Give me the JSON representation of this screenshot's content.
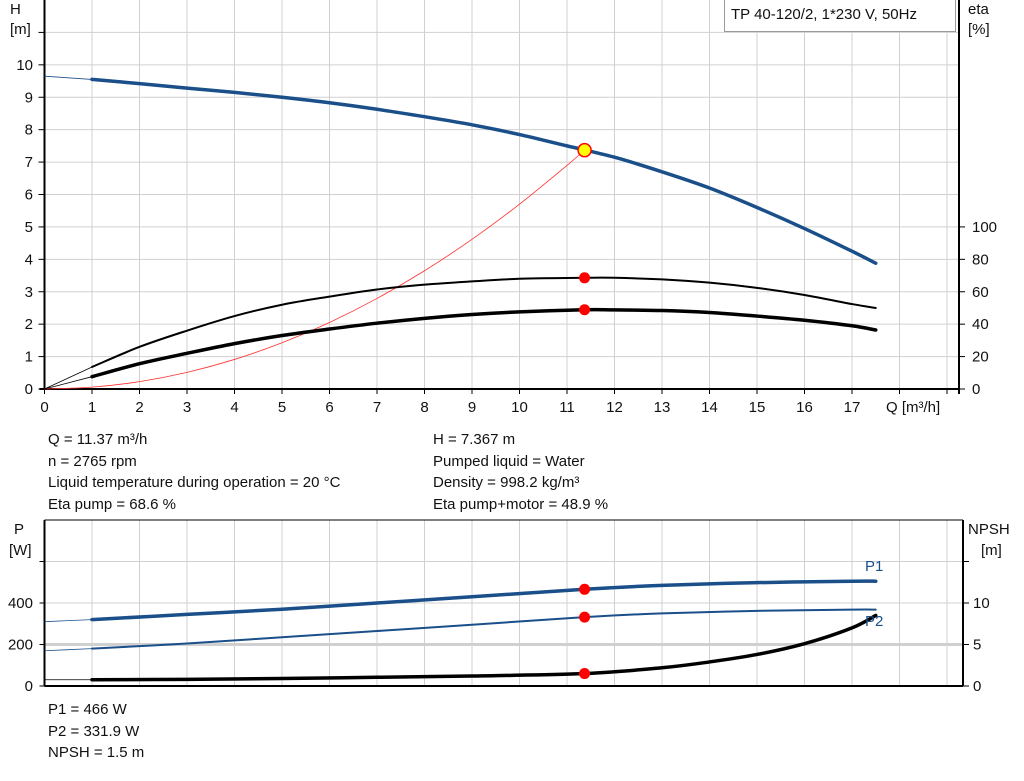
{
  "title": "TP 40-120/2, 1*230 V, 50Hz",
  "colors": {
    "head": "#1b4f8a",
    "power": "#1b4f8a",
    "efficiency": "#000000",
    "npsh": "#000000",
    "system_curve": "#ff3030",
    "duty_point": "#ff0000",
    "duty_point_head_fill": "#ffff00",
    "grid": "#d0d0d0"
  },
  "duty_info": {
    "left": [
      "Q = 11.37 m³/h",
      "n = 2765 rpm",
      "Liquid temperature during operation = 20 °C",
      "Eta pump = 68.6 %"
    ],
    "right": [
      "H = 7.367 m",
      "Pumped liquid = Water",
      "Density = 998.2 kg/m³",
      "Eta pump+motor = 48.9 %"
    ]
  },
  "power_info": [
    "P1 = 466 W",
    "P2 = 331.9 W",
    "NPSH = 1.5 m"
  ],
  "chart_data": [
    {
      "type": "line",
      "ylabel": "H",
      "yunit": "[m]",
      "y2label": "eta",
      "y2unit": "[%]",
      "xlabel": "Q [m³/h]",
      "xlim": [
        0,
        19
      ],
      "ylim": [
        0,
        12
      ],
      "y2lim": [
        0,
        240
      ],
      "xticks": [
        0,
        1,
        2,
        3,
        4,
        5,
        6,
        7,
        8,
        9,
        10,
        11,
        12,
        13,
        14,
        15,
        16,
        17
      ],
      "yticks": [
        0,
        1,
        2,
        3,
        4,
        5,
        6,
        7,
        8,
        9,
        10
      ],
      "y2ticks": [
        0,
        20,
        40,
        60,
        80,
        100
      ],
      "grid": true,
      "duty_point": {
        "Q": 11.37,
        "H": 7.367,
        "eta_pump": 68.6,
        "eta_pump_motor": 48.9
      },
      "series": [
        {
          "key": "H",
          "axis": "left",
          "x": [
            1,
            2,
            3,
            4,
            5,
            6,
            7,
            8,
            9,
            10,
            11,
            12,
            13,
            14,
            15,
            16,
            17,
            17.5
          ],
          "y": [
            9.55,
            9.42,
            9.28,
            9.15,
            9.0,
            8.83,
            8.63,
            8.4,
            8.15,
            7.85,
            7.5,
            7.15,
            6.7,
            6.2,
            5.6,
            4.95,
            4.25,
            3.88
          ],
          "extension": {
            "x": [
              0,
              1
            ],
            "y": [
              9.65,
              9.55
            ]
          }
        },
        {
          "key": "eta_pump",
          "axis": "right",
          "x": [
            1,
            2,
            3,
            4,
            5,
            6,
            7,
            8,
            9,
            10,
            11.37,
            12,
            13,
            14,
            15,
            16,
            17,
            17.5
          ],
          "y": [
            13.6,
            26,
            36,
            45,
            52,
            57,
            61.4,
            64.4,
            66.4,
            68,
            68.6,
            68.6,
            67.6,
            65.6,
            62.4,
            58,
            52.4,
            50
          ],
          "extension": {
            "x": [
              0,
              1
            ],
            "y": [
              0,
              13.6
            ]
          }
        },
        {
          "key": "eta_pump_motor",
          "axis": "right",
          "x": [
            1,
            2,
            3,
            4,
            5,
            6,
            7,
            8,
            9,
            10,
            11.37,
            12,
            13,
            14,
            15,
            16,
            17,
            17.5
          ],
          "y": [
            7.6,
            15.6,
            22,
            28,
            33,
            37,
            40.6,
            43.6,
            46,
            47.6,
            48.9,
            48.8,
            48.4,
            47.2,
            45,
            42.4,
            39,
            36.4
          ],
          "extension": {
            "x": [
              0,
              1
            ],
            "y": [
              0,
              7.6
            ]
          }
        },
        {
          "key": "system_curve",
          "axis": "left",
          "x": [
            0,
            1,
            2,
            3,
            4,
            5,
            6,
            7,
            8,
            9,
            10,
            11,
            11.37
          ],
          "y": [
            0,
            0.057,
            0.228,
            0.513,
            0.912,
            1.425,
            2.052,
            2.793,
            3.648,
            4.617,
            5.7,
            6.897,
            7.367
          ]
        }
      ]
    },
    {
      "type": "line",
      "ylabel": "P",
      "yunit": "[W]",
      "y2label": "NPSH",
      "y2unit": "[m]",
      "xlim": [
        0,
        19
      ],
      "ylim": [
        0,
        800
      ],
      "y2lim": [
        0,
        20
      ],
      "yticks": [
        0,
        200,
        400
      ],
      "y2ticks": [
        0,
        5,
        10
      ],
      "grid": true,
      "duty_point": {
        "Q": 11.37,
        "P1": 466,
        "P2": 331.9,
        "NPSH": 1.5
      },
      "series": [
        {
          "key": "P1",
          "name": "P1",
          "axis": "left",
          "x": [
            1,
            3,
            5,
            7,
            9,
            11.37,
            13,
            15,
            17,
            17.5
          ],
          "y": [
            320,
            345,
            370,
            400,
            430,
            466,
            485,
            498,
            505,
            505
          ],
          "extension": {
            "x": [
              0,
              1
            ],
            "y": [
              310,
              320
            ]
          }
        },
        {
          "key": "P2",
          "name": "P2",
          "axis": "left",
          "x": [
            1,
            3,
            5,
            7,
            9,
            11.37,
            13,
            15,
            17,
            17.5
          ],
          "y": [
            180,
            205,
            235,
            265,
            295,
            331.9,
            350,
            362,
            368,
            368
          ],
          "extension": {
            "x": [
              0,
              1
            ],
            "y": [
              170,
              180
            ]
          }
        },
        {
          "key": "NPSH",
          "axis": "right",
          "x": [
            1,
            3,
            5,
            7,
            9,
            11.37,
            13,
            14,
            15,
            16,
            17,
            17.5
          ],
          "y": [
            0.75,
            0.8,
            0.9,
            1.05,
            1.2,
            1.5,
            2.2,
            2.9,
            3.8,
            5.1,
            7.0,
            8.5
          ],
          "extension": {
            "x": [
              0,
              1
            ],
            "y": [
              0.75,
              0.75
            ]
          }
        }
      ]
    }
  ]
}
